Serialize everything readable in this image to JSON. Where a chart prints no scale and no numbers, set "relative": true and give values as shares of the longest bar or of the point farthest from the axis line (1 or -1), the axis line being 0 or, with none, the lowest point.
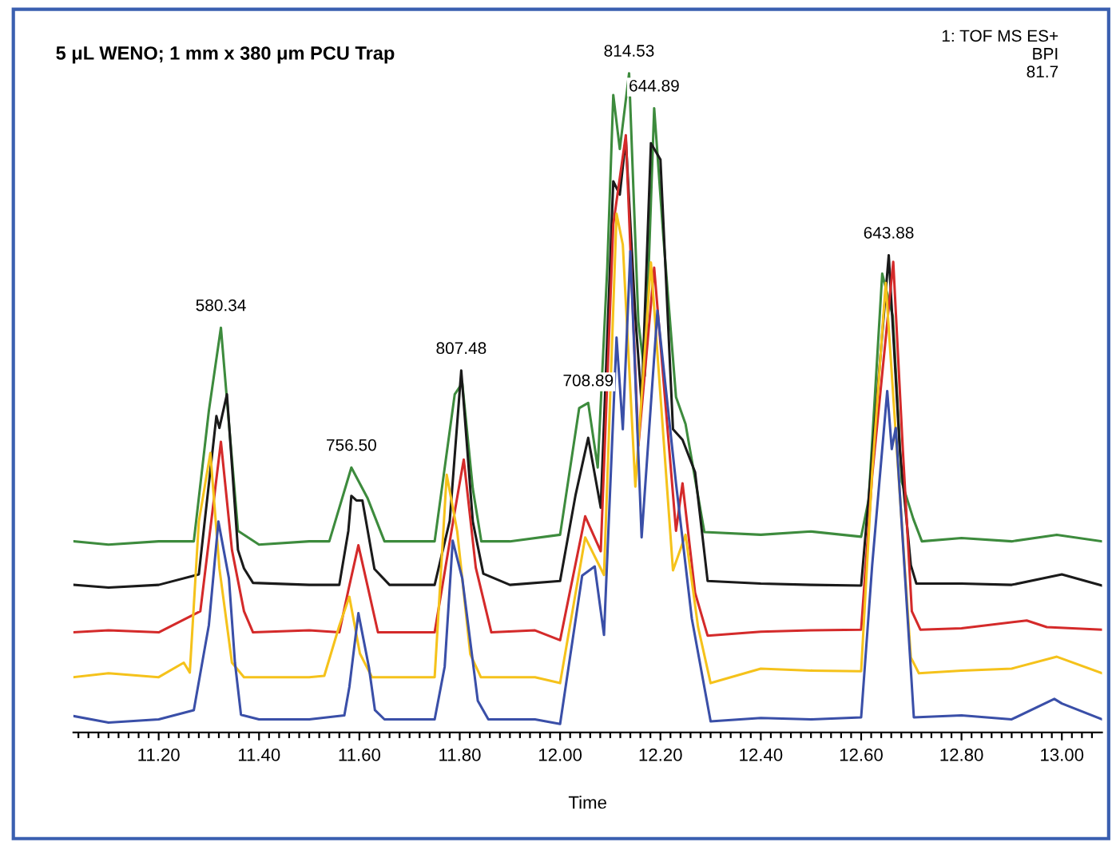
{
  "chart_data": {
    "type": "line",
    "relative": true,
    "title": "5 μL WENO; 1 mm x 380 μm PCU Trap",
    "xlabel": "Time",
    "xlim": [
      11.03,
      13.08
    ],
    "xticks": [
      {
        "value": 11.04,
        "label": null
      },
      {
        "value": 11.06,
        "label": null
      },
      {
        "value": 11.08,
        "label": null
      },
      {
        "value": 11.1,
        "label": null
      },
      {
        "value": 11.12,
        "label": null
      },
      {
        "value": 11.14,
        "label": null
      },
      {
        "value": 11.16,
        "label": null
      },
      {
        "value": 11.18,
        "label": null
      },
      {
        "value": 11.2,
        "label": "11.20"
      },
      {
        "value": 11.22,
        "label": null
      },
      {
        "value": 11.24,
        "label": null
      },
      {
        "value": 11.26,
        "label": null
      },
      {
        "value": 11.28,
        "label": null
      },
      {
        "value": 11.3,
        "label": null
      },
      {
        "value": 11.32,
        "label": null
      },
      {
        "value": 11.34,
        "label": null
      },
      {
        "value": 11.36,
        "label": null
      },
      {
        "value": 11.38,
        "label": null
      },
      {
        "value": 11.4,
        "label": "11.40"
      },
      {
        "value": 11.42,
        "label": null
      },
      {
        "value": 11.44,
        "label": null
      },
      {
        "value": 11.46,
        "label": null
      },
      {
        "value": 11.48,
        "label": null
      },
      {
        "value": 11.5,
        "label": null
      },
      {
        "value": 11.52,
        "label": null
      },
      {
        "value": 11.54,
        "label": null
      },
      {
        "value": 11.56,
        "label": null
      },
      {
        "value": 11.58,
        "label": null
      },
      {
        "value": 11.6,
        "label": "11.60"
      },
      {
        "value": 11.62,
        "label": null
      },
      {
        "value": 11.64,
        "label": null
      },
      {
        "value": 11.66,
        "label": null
      },
      {
        "value": 11.68,
        "label": null
      },
      {
        "value": 11.7,
        "label": null
      },
      {
        "value": 11.72,
        "label": null
      },
      {
        "value": 11.74,
        "label": null
      },
      {
        "value": 11.76,
        "label": null
      },
      {
        "value": 11.78,
        "label": null
      },
      {
        "value": 11.8,
        "label": "11.80"
      },
      {
        "value": 11.82,
        "label": null
      },
      {
        "value": 11.84,
        "label": null
      },
      {
        "value": 11.86,
        "label": null
      },
      {
        "value": 11.88,
        "label": null
      },
      {
        "value": 11.9,
        "label": null
      },
      {
        "value": 11.92,
        "label": null
      },
      {
        "value": 11.94,
        "label": null
      },
      {
        "value": 11.96,
        "label": null
      },
      {
        "value": 11.98,
        "label": null
      },
      {
        "value": 12.0,
        "label": "12.00"
      },
      {
        "value": 12.02,
        "label": null
      },
      {
        "value": 12.04,
        "label": null
      },
      {
        "value": 12.06,
        "label": null
      },
      {
        "value": 12.08,
        "label": null
      },
      {
        "value": 12.1,
        "label": null
      },
      {
        "value": 12.12,
        "label": null
      },
      {
        "value": 12.14,
        "label": null
      },
      {
        "value": 12.16,
        "label": null
      },
      {
        "value": 12.18,
        "label": null
      },
      {
        "value": 12.2,
        "label": "12.20"
      },
      {
        "value": 12.22,
        "label": null
      },
      {
        "value": 12.24,
        "label": null
      },
      {
        "value": 12.26,
        "label": null
      },
      {
        "value": 12.28,
        "label": null
      },
      {
        "value": 12.3,
        "label": null
      },
      {
        "value": 12.32,
        "label": null
      },
      {
        "value": 12.34,
        "label": null
      },
      {
        "value": 12.36,
        "label": null
      },
      {
        "value": 12.38,
        "label": null
      },
      {
        "value": 12.4,
        "label": "12.40"
      },
      {
        "value": 12.42,
        "label": null
      },
      {
        "value": 12.44,
        "label": null
      },
      {
        "value": 12.46,
        "label": null
      },
      {
        "value": 12.48,
        "label": null
      },
      {
        "value": 12.5,
        "label": null
      },
      {
        "value": 12.52,
        "label": null
      },
      {
        "value": 12.54,
        "label": null
      },
      {
        "value": 12.56,
        "label": null
      },
      {
        "value": 12.58,
        "label": null
      },
      {
        "value": 12.6,
        "label": "12.60"
      },
      {
        "value": 12.62,
        "label": null
      },
      {
        "value": 12.64,
        "label": null
      },
      {
        "value": 12.66,
        "label": null
      },
      {
        "value": 12.68,
        "label": null
      },
      {
        "value": 12.7,
        "label": null
      },
      {
        "value": 12.72,
        "label": null
      },
      {
        "value": 12.74,
        "label": null
      },
      {
        "value": 12.76,
        "label": null
      },
      {
        "value": 12.78,
        "label": null
      },
      {
        "value": 12.8,
        "label": "12.80"
      },
      {
        "value": 12.82,
        "label": null
      },
      {
        "value": 12.84,
        "label": null
      },
      {
        "value": 12.86,
        "label": null
      },
      {
        "value": 12.88,
        "label": null
      },
      {
        "value": 12.9,
        "label": null
      },
      {
        "value": 12.92,
        "label": null
      },
      {
        "value": 12.94,
        "label": null
      },
      {
        "value": 12.96,
        "label": null
      },
      {
        "value": 12.98,
        "label": null
      },
      {
        "value": 13.0,
        "label": "13.00"
      },
      {
        "value": 13.02,
        "label": null
      },
      {
        "value": 13.04,
        "label": null
      },
      {
        "value": 13.06,
        "label": null
      }
    ],
    "tick_labels": "x",
    "grid": false,
    "legend": false,
    "series": [
      {
        "color": "#3d8b3d",
        "x": [
          11.03,
          11.1,
          11.2,
          11.27,
          11.3,
          11.324,
          11.358,
          11.4,
          11.5,
          11.54,
          11.584,
          11.616,
          11.65,
          11.75,
          11.79,
          11.805,
          11.826,
          11.843,
          11.9,
          12.0,
          12.038,
          12.056,
          12.075,
          12.094,
          12.106,
          12.119,
          12.1375,
          12.156,
          12.169,
          12.1875,
          12.206,
          12.231,
          12.25,
          12.263,
          12.2875,
          12.4,
          12.5,
          12.6,
          12.615,
          12.642,
          12.663,
          12.681,
          12.704,
          12.721,
          12.8,
          12.9,
          12.99,
          13.08
        ],
        "values": [
          0.29,
          0.285,
          0.29,
          0.29,
          0.488,
          0.614,
          0.306,
          0.285,
          0.29,
          0.29,
          0.402,
          0.356,
          0.29,
          0.29,
          0.513,
          0.53,
          0.37,
          0.29,
          0.29,
          0.3,
          0.492,
          0.5,
          0.402,
          0.705,
          0.967,
          0.885,
          1.0,
          0.623,
          0.541,
          0.947,
          0.75,
          0.509,
          0.468,
          0.411,
          0.304,
          0.3,
          0.305,
          0.297,
          0.353,
          0.696,
          0.632,
          0.38,
          0.324,
          0.29,
          0.295,
          0.29,
          0.3,
          0.29
        ]
      },
      {
        "color": "#1a1a1a",
        "x": [
          11.03,
          11.1,
          11.2,
          11.28,
          11.315,
          11.321,
          11.336,
          11.358,
          11.37,
          11.388,
          11.5,
          11.56,
          11.578,
          11.584,
          11.594,
          11.606,
          11.63,
          11.66,
          11.75,
          11.78,
          11.803,
          11.826,
          11.847,
          11.9,
          12.0,
          12.031,
          12.056,
          12.081,
          12.106,
          12.119,
          12.131,
          12.15,
          12.1625,
          12.181,
          12.2,
          12.225,
          12.244,
          12.269,
          12.294,
          12.4,
          12.5,
          12.6,
          12.62,
          12.655,
          12.677,
          12.699,
          12.71,
          12.8,
          12.9,
          13.0,
          13.08
        ],
        "values": [
          0.224,
          0.22,
          0.224,
          0.24,
          0.48,
          0.462,
          0.513,
          0.277,
          0.249,
          0.227,
          0.224,
          0.224,
          0.306,
          0.359,
          0.352,
          0.352,
          0.248,
          0.224,
          0.224,
          0.321,
          0.549,
          0.32,
          0.241,
          0.224,
          0.23,
          0.361,
          0.447,
          0.341,
          0.836,
          0.816,
          0.9,
          0.631,
          0.5,
          0.894,
          0.869,
          0.46,
          0.444,
          0.395,
          0.23,
          0.226,
          0.224,
          0.223,
          0.4,
          0.724,
          0.43,
          0.254,
          0.226,
          0.226,
          0.224,
          0.24,
          0.223
        ]
      },
      {
        "color": "#d42a2a",
        "x": [
          11.03,
          11.1,
          11.2,
          11.283,
          11.324,
          11.346,
          11.37,
          11.388,
          11.5,
          11.56,
          11.578,
          11.598,
          11.619,
          11.637,
          11.75,
          11.79,
          11.808,
          11.832,
          11.863,
          11.95,
          12.0,
          12.05,
          12.081,
          12.106,
          12.131,
          12.156,
          12.1875,
          12.231,
          12.244,
          12.269,
          12.294,
          12.4,
          12.5,
          12.6,
          12.622,
          12.664,
          12.683,
          12.701,
          12.718,
          12.8,
          12.93,
          12.97,
          13.08
        ],
        "values": [
          0.152,
          0.155,
          0.152,
          0.184,
          0.441,
          0.277,
          0.184,
          0.152,
          0.155,
          0.152,
          0.216,
          0.284,
          0.213,
          0.152,
          0.152,
          0.335,
          0.414,
          0.25,
          0.152,
          0.155,
          0.14,
          0.328,
          0.275,
          0.771,
          0.906,
          0.435,
          0.705,
          0.306,
          0.378,
          0.212,
          0.147,
          0.153,
          0.155,
          0.156,
          0.39,
          0.714,
          0.43,
          0.184,
          0.156,
          0.158,
          0.17,
          0.16,
          0.156
        ]
      },
      {
        "color": "#f5c21b",
        "x": [
          11.03,
          11.1,
          11.2,
          11.25,
          11.262,
          11.28,
          11.303,
          11.321,
          11.346,
          11.37,
          11.5,
          11.53,
          11.56,
          11.58,
          11.601,
          11.625,
          11.65,
          11.75,
          11.774,
          11.795,
          11.821,
          11.842,
          11.95,
          12.0,
          12.05,
          12.0875,
          12.1125,
          12.125,
          12.15,
          12.181,
          12.225,
          12.25,
          12.275,
          12.3,
          12.4,
          12.5,
          12.6,
          12.622,
          12.649,
          12.671,
          12.699,
          12.715,
          12.8,
          12.9,
          12.99,
          13.08
        ],
        "values": [
          0.084,
          0.09,
          0.084,
          0.106,
          0.091,
          0.32,
          0.424,
          0.249,
          0.106,
          0.084,
          0.084,
          0.086,
          0.162,
          0.206,
          0.12,
          0.084,
          0.084,
          0.084,
          0.391,
          0.305,
          0.119,
          0.084,
          0.084,
          0.075,
          0.296,
          0.239,
          0.787,
          0.74,
          0.373,
          0.713,
          0.246,
          0.3,
          0.16,
          0.075,
          0.097,
          0.094,
          0.093,
          0.395,
          0.682,
          0.43,
          0.114,
          0.09,
          0.094,
          0.097,
          0.115,
          0.09
        ]
      },
      {
        "color": "#3a4fa8",
        "x": [
          11.03,
          11.1,
          11.2,
          11.27,
          11.3,
          11.319,
          11.34,
          11.352,
          11.364,
          11.4,
          11.5,
          11.57,
          11.58,
          11.598,
          11.619,
          11.631,
          11.65,
          11.75,
          11.77,
          11.786,
          11.805,
          11.836,
          11.857,
          11.95,
          12.0,
          12.044,
          12.069,
          12.0875,
          12.1125,
          12.125,
          12.14,
          12.1625,
          12.194,
          12.231,
          12.2625,
          12.3,
          12.4,
          12.5,
          12.6,
          12.622,
          12.652,
          12.661,
          12.669,
          12.689,
          12.705,
          12.8,
          12.9,
          12.985,
          13.0,
          13.08
        ],
        "values": [
          0.025,
          0.015,
          0.02,
          0.034,
          0.163,
          0.32,
          0.234,
          0.106,
          0.027,
          0.02,
          0.02,
          0.026,
          0.069,
          0.181,
          0.099,
          0.034,
          0.02,
          0.02,
          0.1,
          0.291,
          0.234,
          0.048,
          0.02,
          0.02,
          0.013,
          0.238,
          0.252,
          0.148,
          0.599,
          0.46,
          0.73,
          0.296,
          0.64,
          0.378,
          0.173,
          0.017,
          0.022,
          0.02,
          0.023,
          0.254,
          0.518,
          0.43,
          0.462,
          0.218,
          0.023,
          0.026,
          0.02,
          0.051,
          0.044,
          0.02
        ]
      }
    ],
    "annotations": [
      {
        "text": "580.34",
        "x": 11.324,
        "y": 0.614
      },
      {
        "text": "756.50",
        "x": 11.584,
        "y": 0.402
      },
      {
        "text": "807.48",
        "x": 11.803,
        "y": 0.549
      },
      {
        "text": "708.89",
        "x": 12.056,
        "y": 0.5
      },
      {
        "text": "814.53",
        "x": 12.1375,
        "y": 1.0
      },
      {
        "text": "644.89",
        "x": 12.1875,
        "y": 0.947
      },
      {
        "text": "643.88",
        "x": 12.655,
        "y": 0.724
      },
      "1: TOF MS ES+\nBPI\n81.7"
    ]
  }
}
